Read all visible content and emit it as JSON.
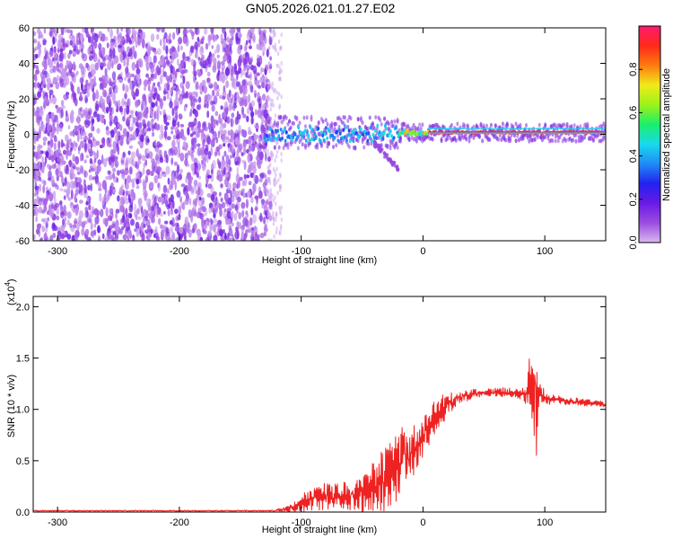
{
  "title": "GN05.2026.021.01.27.E02",
  "chart_data": [
    {
      "type": "heatmap",
      "title": "",
      "xlabel": "Height of straight line (km)",
      "ylabel": "Frequency (Hz)",
      "xlim": [
        -320,
        150
      ],
      "ylim": [
        -60,
        60
      ],
      "xticks": [
        -300,
        -200,
        -100,
        0,
        100
      ],
      "yticks": [
        -60,
        -40,
        -20,
        0,
        20,
        40,
        60
      ],
      "colormap": [
        "#d9b8f2",
        "#9b4de0",
        "#6a1ae6",
        "#2222ee",
        "#1f8cf5",
        "#19d9ee",
        "#1aef6a",
        "#9cf21a",
        "#f0ea1a",
        "#ff7a10",
        "#ff2a1a",
        "#ff1a6e"
      ],
      "colorbar": {
        "label": "Normalized spectral amplitude",
        "range": [
          0.0,
          1.0
        ],
        "ticks": [
          "0.0",
          "0.2",
          "0.4",
          "0.6",
          "0.8"
        ]
      },
      "regions": [
        {
          "name": "broadband noise",
          "x_range": [
            -320,
            -125
          ],
          "freq_range": [
            -60,
            60
          ],
          "amplitude": "0.0-0.2"
        },
        {
          "name": "narrowband signal",
          "x_range": [
            -130,
            150
          ],
          "freq_center": 1,
          "amplitude": "0.3-1.0"
        },
        {
          "name": "lower sideband branch",
          "x_range": [
            -40,
            -20
          ],
          "freq_range": [
            -20,
            -5
          ],
          "amplitude": "0.1"
        }
      ]
    },
    {
      "type": "line",
      "title": "",
      "xlabel": "Height of straight line (km)",
      "ylabel": "SNR (10 * v/v)",
      "scale_label": "(x10",
      "scale_exponent": "4",
      "xlim": [
        -320,
        150
      ],
      "ylim": [
        0,
        2.1
      ],
      "xticks": [
        -300,
        -200,
        -100,
        0,
        100
      ],
      "yticks": [
        "0.0",
        "0.5",
        "1.0",
        "1.5",
        "2.0"
      ],
      "series": [
        {
          "name": "SNR",
          "color": "#ee2222",
          "x": [
            -320,
            -300,
            -250,
            -200,
            -150,
            -125,
            -110,
            -100,
            -90,
            -80,
            -70,
            -60,
            -50,
            -40,
            -30,
            -20,
            -10,
            0,
            10,
            20,
            30,
            40,
            50,
            60,
            70,
            80,
            85,
            90,
            93,
            96,
            100,
            110,
            120,
            130,
            140,
            150
          ],
          "y": [
            0.0,
            0.0,
            0.0,
            0.0,
            0.01,
            0.01,
            0.03,
            0.08,
            0.14,
            0.16,
            0.16,
            0.17,
            0.17,
            0.22,
            0.34,
            0.48,
            0.55,
            0.72,
            0.92,
            1.05,
            1.12,
            1.15,
            1.16,
            1.16,
            1.16,
            1.15,
            1.14,
            1.25,
            1.12,
            1.18,
            1.1,
            1.1,
            1.08,
            1.07,
            1.06,
            1.04
          ],
          "spread": [
            0.0,
            0.0,
            0.0,
            0.0,
            0.0,
            0.0,
            0.04,
            0.1,
            0.12,
            0.14,
            0.14,
            0.18,
            0.22,
            0.3,
            0.36,
            0.38,
            0.3,
            0.24,
            0.16,
            0.12,
            0.08,
            0.05,
            0.05,
            0.05,
            0.05,
            0.05,
            0.1,
            0.55,
            0.8,
            0.3,
            0.06,
            0.04,
            0.04,
            0.04,
            0.04,
            0.04
          ]
        }
      ]
    }
  ]
}
